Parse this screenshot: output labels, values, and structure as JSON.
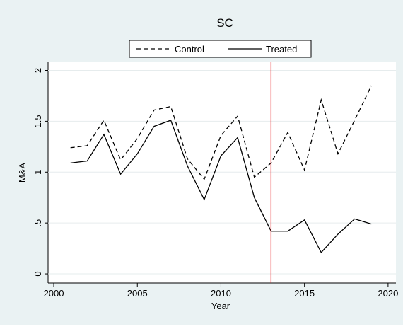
{
  "chart_data": {
    "type": "line",
    "title": "SC",
    "x": [
      2001,
      2002,
      2003,
      2004,
      2005,
      2006,
      2007,
      2008,
      2009,
      2010,
      2011,
      2012,
      2013,
      2014,
      2015,
      2016,
      2017,
      2018,
      2019
    ],
    "series": [
      {
        "name": "Control",
        "color": "#000000",
        "dash": "6,4",
        "values": [
          1.24,
          1.26,
          1.51,
          1.12,
          1.33,
          1.61,
          1.645,
          1.13,
          0.93,
          1.36,
          1.55,
          0.95,
          1.09,
          1.39,
          1.02,
          1.71,
          1.18,
          1.51,
          1.85
        ]
      },
      {
        "name": "Treated",
        "color": "#000000",
        "values": [
          1.09,
          1.11,
          1.37,
          0.98,
          1.18,
          1.45,
          1.51,
          1.06,
          0.73,
          1.16,
          1.34,
          0.75,
          0.42,
          0.42,
          0.53,
          0.21,
          0.39,
          0.54,
          0.49
        ]
      }
    ],
    "xlabel": "Year",
    "ylabel": "M&A",
    "xlim": [
      1999.66,
      2020.47
    ],
    "xticks": [
      2000,
      2005,
      2010,
      2015,
      2020
    ],
    "ylim": [
      -0.09,
      2.08
    ],
    "yticks": [
      0,
      {
        "value": 0.5,
        "label": ".5"
      },
      1,
      1.5,
      2
    ],
    "grid": true,
    "vline": 2013,
    "vline_color": "#e8191b",
    "legend": "top"
  }
}
